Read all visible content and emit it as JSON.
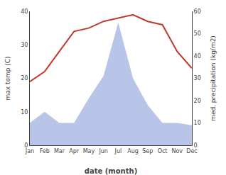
{
  "chart_data": {
    "type": "line",
    "xlabel": "date (month)",
    "ylabel": "max temp (C)",
    "y2label": "med. precipitation (kg/m2)",
    "categories": [
      "Jan",
      "Feb",
      "Mar",
      "Apr",
      "May",
      "Jun",
      "Jul",
      "Aug",
      "Sep",
      "Oct",
      "Nov",
      "Dec"
    ],
    "series": [
      {
        "type": "area",
        "color": "#b8c4e8",
        "axis": "y2",
        "values": [
          10,
          15,
          10,
          10,
          21,
          31,
          55,
          30,
          18,
          10,
          10,
          9
        ]
      },
      {
        "type": "line",
        "color": "#c0392b",
        "values": [
          19,
          22,
          28,
          34,
          35,
          37,
          38,
          39,
          37,
          36,
          28,
          23
        ]
      }
    ],
    "ylim": [
      0,
      40
    ],
    "yticks": [
      0,
      10,
      20,
      30,
      40
    ],
    "y2lim": [
      0,
      60
    ],
    "y2ticks": [
      0,
      10,
      20,
      30,
      40,
      50,
      60
    ],
    "grid": false
  }
}
